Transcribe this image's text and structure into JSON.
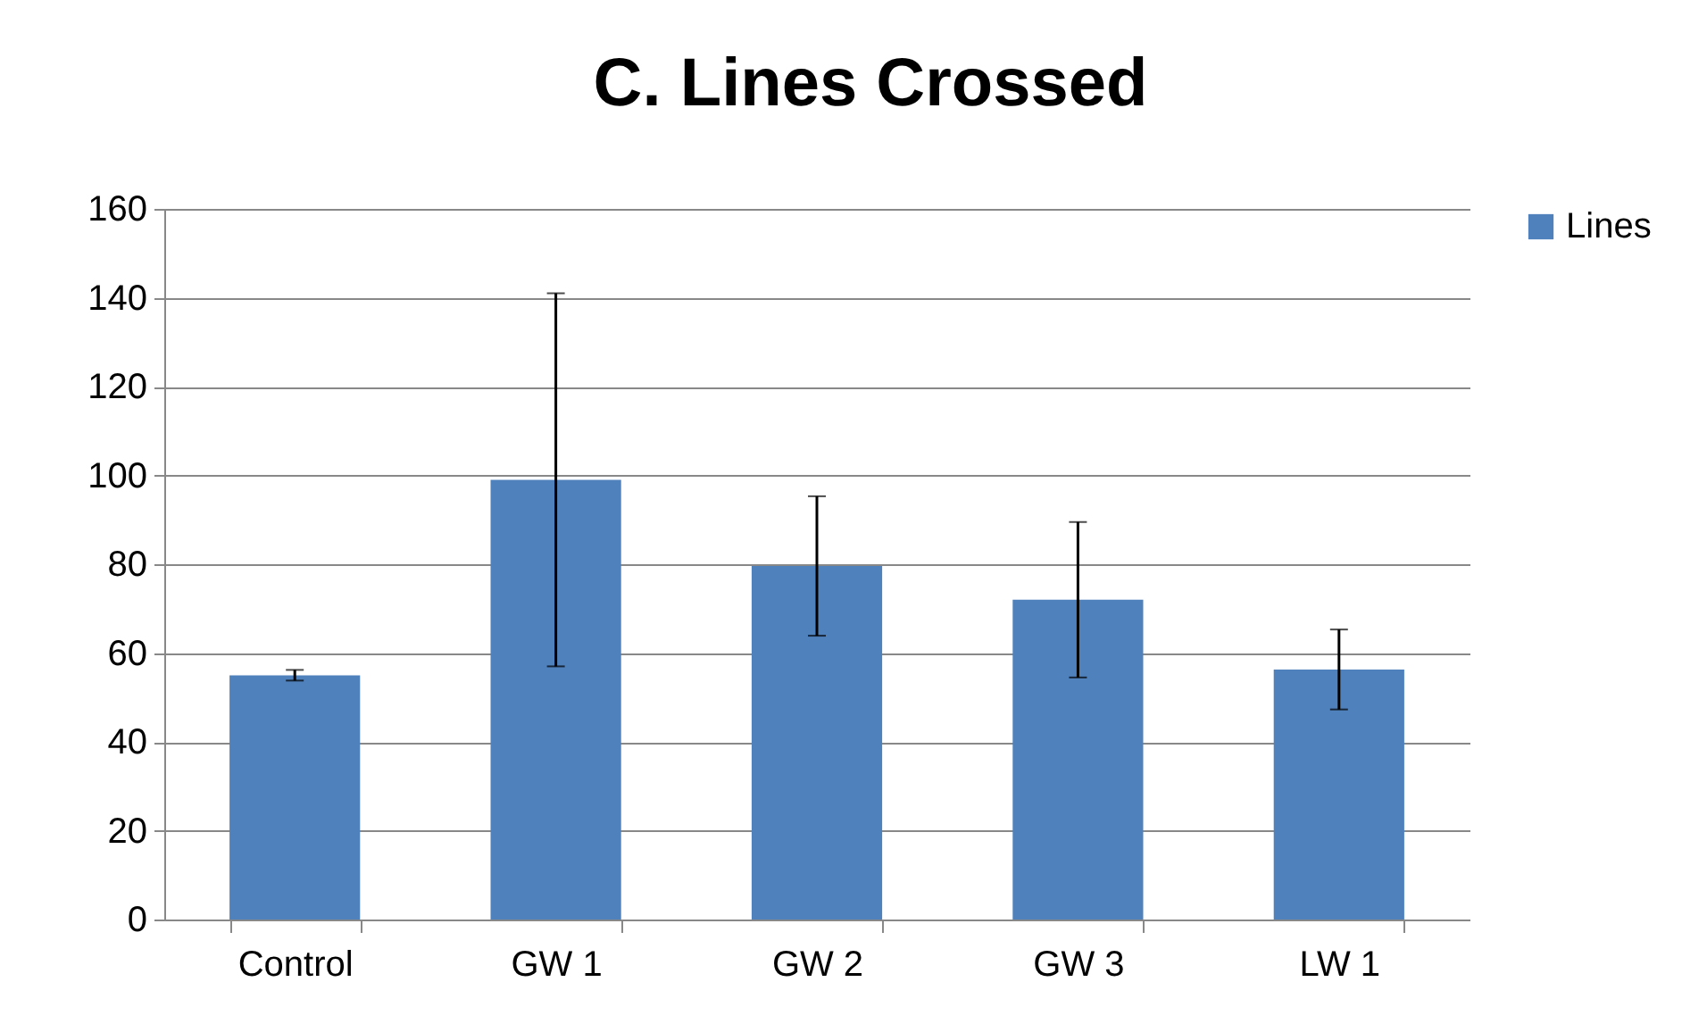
{
  "chart_data": {
    "type": "bar",
    "title": "C. Lines Crossed",
    "categories": [
      "Control",
      "GW 1",
      "GW 2",
      "GW 3",
      "LW 1"
    ],
    "series": [
      {
        "name": "Lines",
        "color": "#4f81bd",
        "values": [
          55,
          99,
          79.6,
          72,
          56.3
        ],
        "errors": [
          1.2,
          42,
          15.7,
          17.5,
          9
        ]
      }
    ],
    "ylim": [
      0,
      160
    ],
    "yticks": [
      0,
      20,
      40,
      60,
      80,
      100,
      120,
      140,
      160
    ],
    "grid": "y",
    "legend": "right"
  }
}
